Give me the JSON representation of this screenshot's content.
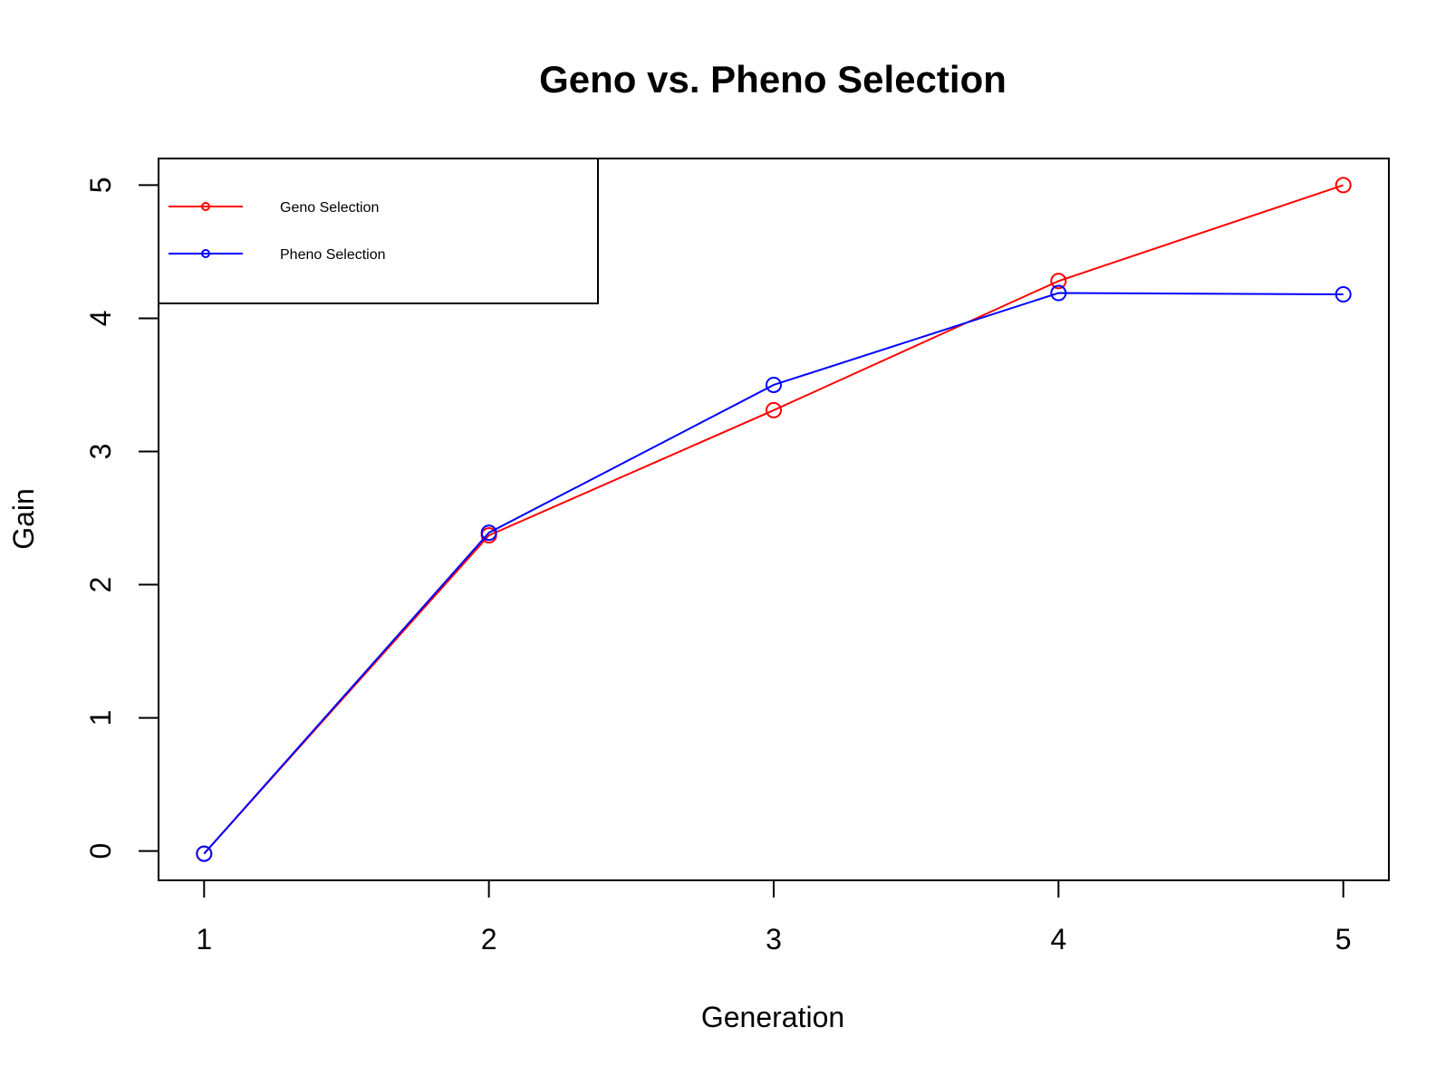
{
  "chart_data": {
    "type": "line",
    "title": "Geno vs. Pheno Selection",
    "xlabel": "Generation",
    "ylabel": "Gain",
    "x": [
      1,
      2,
      3,
      4,
      5
    ],
    "xlim": [
      0.84,
      5.16
    ],
    "ylim": [
      -0.22,
      5.2
    ],
    "xticks": [
      "1",
      "2",
      "3",
      "4",
      "5"
    ],
    "yticks": [
      "0",
      "1",
      "2",
      "3",
      "4",
      "5"
    ],
    "grid": false,
    "legend_position": "top-left",
    "series": [
      {
        "name": "Geno Selection",
        "color": "#ff0000",
        "marker": "open-circle",
        "values": [
          -0.02,
          2.37,
          3.31,
          4.28,
          5.0
        ]
      },
      {
        "name": "Pheno Selection",
        "color": "#0000ff",
        "marker": "open-circle",
        "values": [
          -0.02,
          2.39,
          3.5,
          4.19,
          4.18
        ]
      }
    ]
  }
}
